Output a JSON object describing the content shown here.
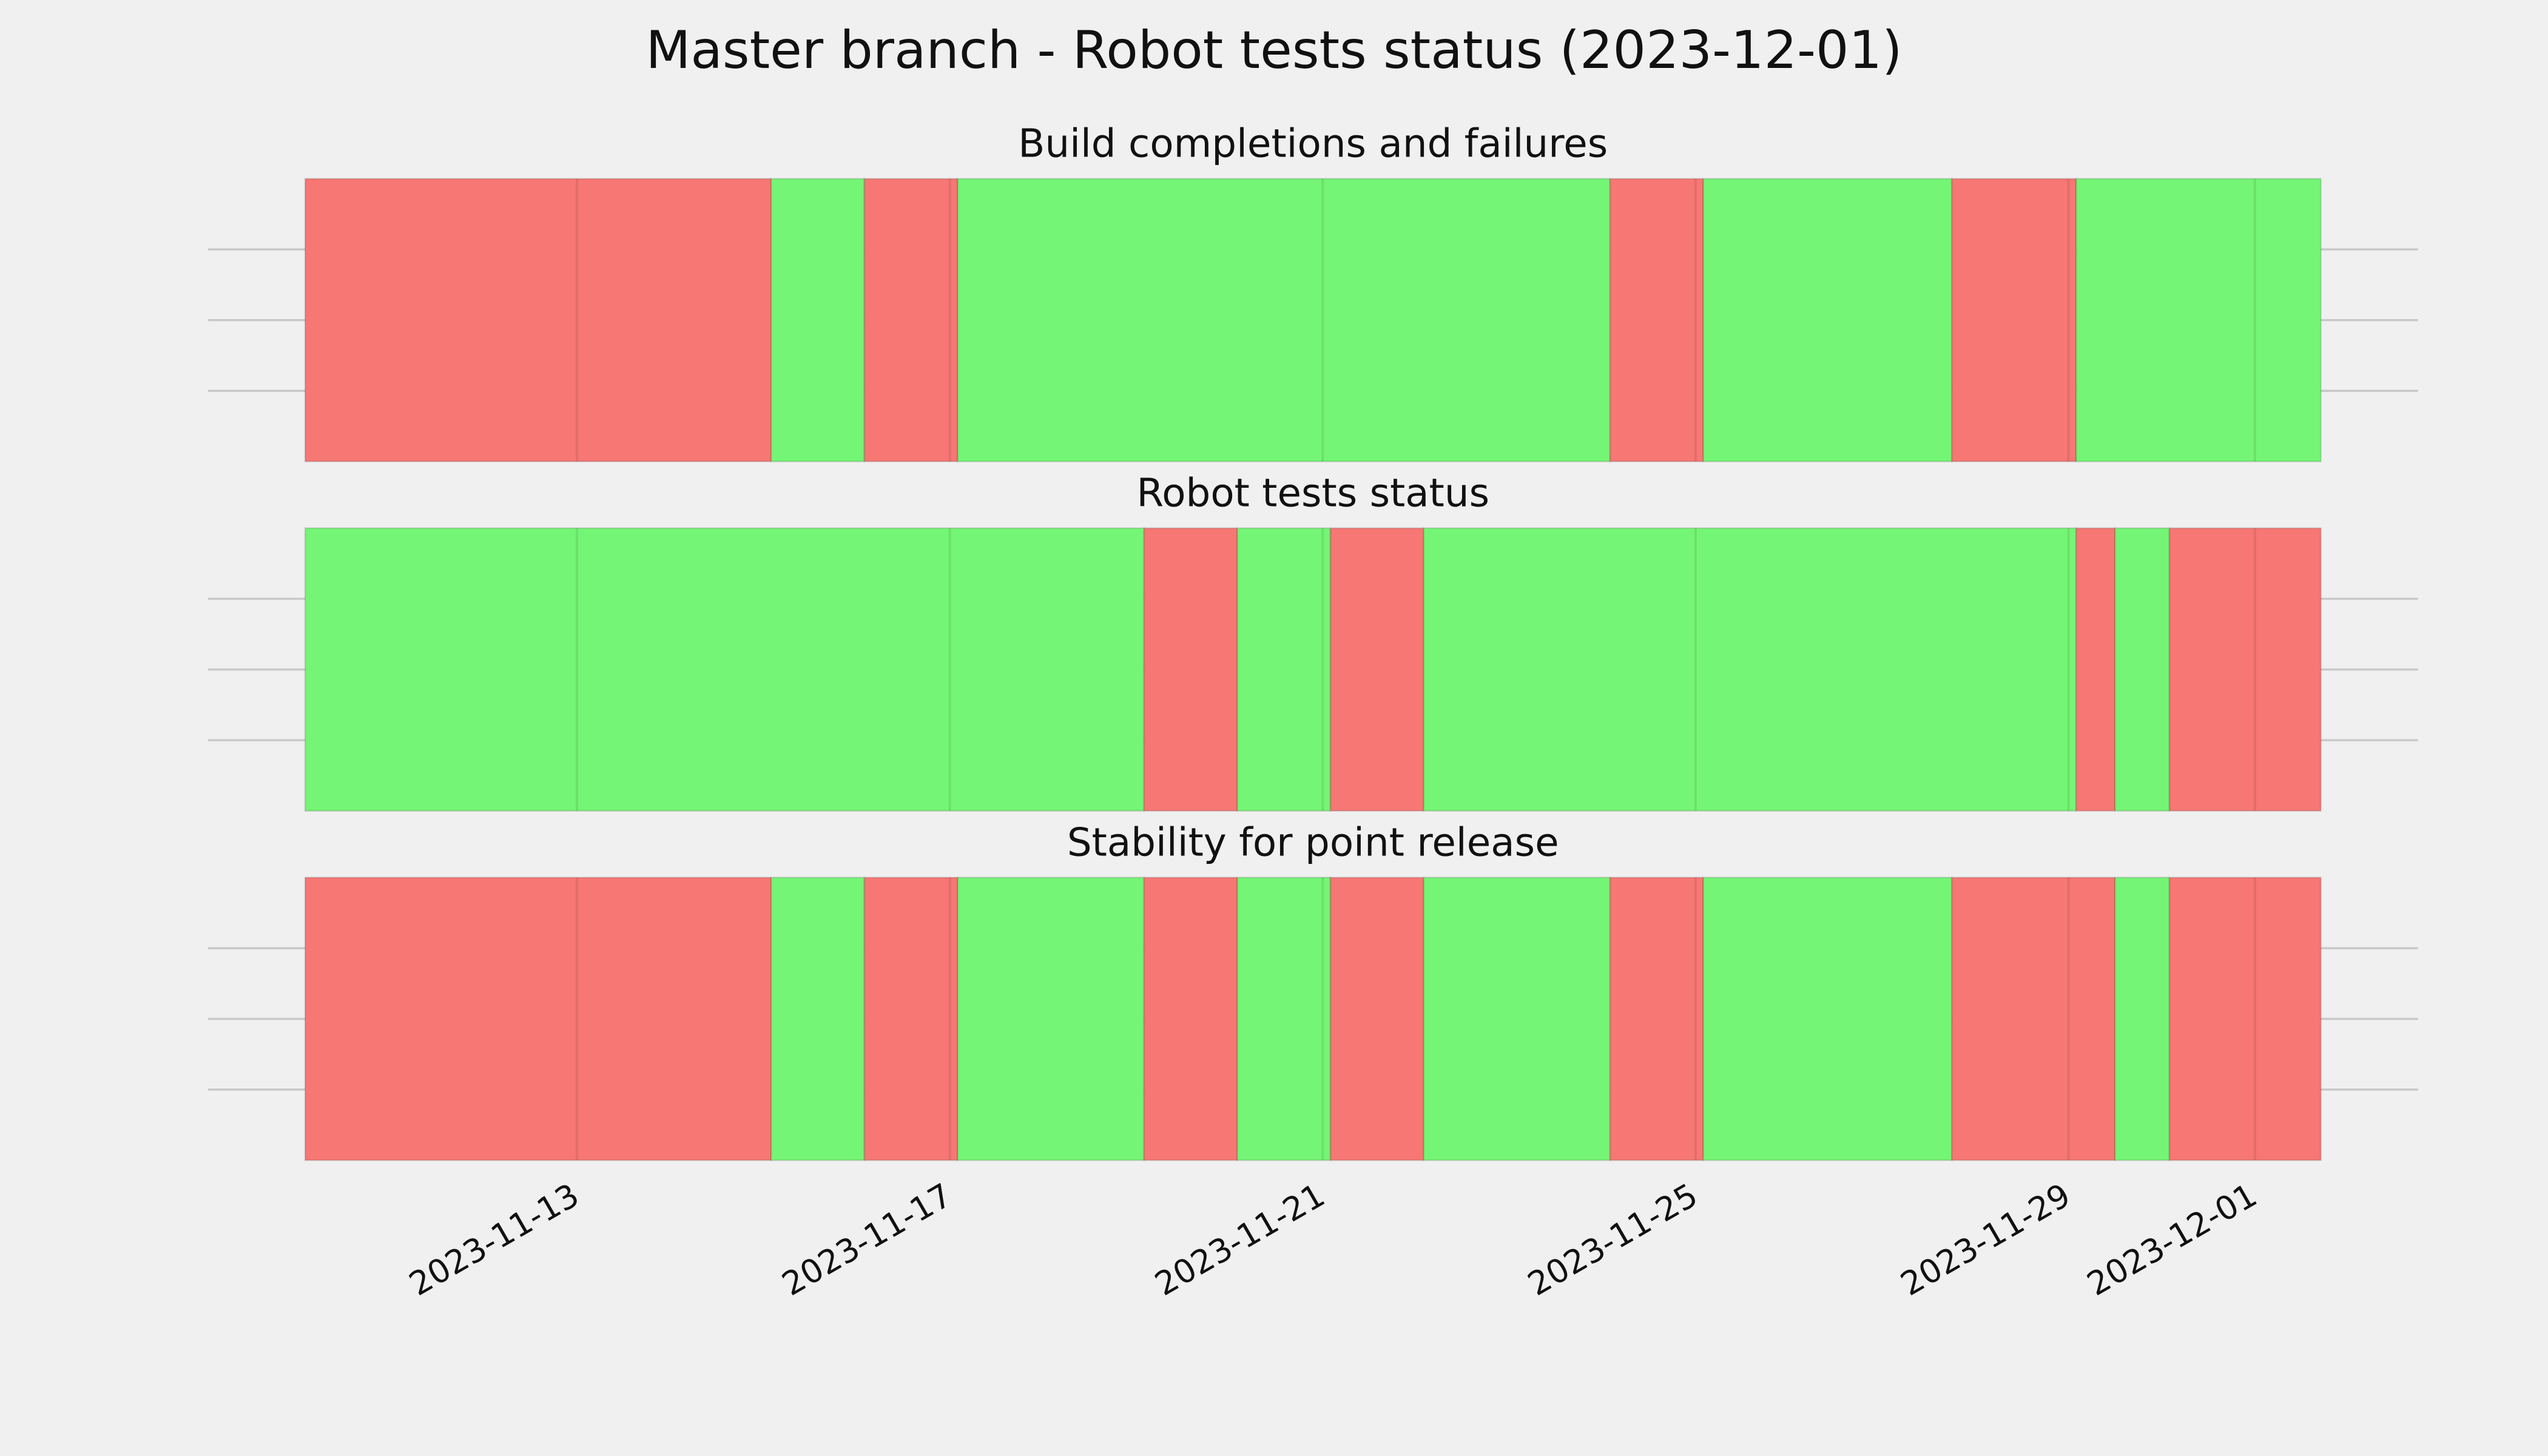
{
  "chart_data": {
    "type": "timeline",
    "title": "Master branch - Robot tests status (2023-12-01)",
    "xlim": [
      "2023-11-09 01:00",
      "2023-12-02 18:00"
    ],
    "xticks": [
      "2023-11-13",
      "2023-11-17",
      "2023-11-21",
      "2023-11-25",
      "2023-11-29",
      "2023-12-01"
    ],
    "grid": true,
    "panels": [
      {
        "title": "Build completions and failures",
        "spans": [
          {
            "start": "2023-11-10 02:00",
            "end": "2023-11-15 02:00",
            "color": "#f77774"
          },
          {
            "start": "2023-11-15 02:00",
            "end": "2023-11-16 02:00",
            "color": "#75f575"
          },
          {
            "start": "2023-11-16 02:00",
            "end": "2023-11-17 02:00",
            "color": "#f77774"
          },
          {
            "start": "2023-11-17 02:00",
            "end": "2023-11-24 02:00",
            "color": "#75f575"
          },
          {
            "start": "2023-11-24 02:00",
            "end": "2023-11-25 02:00",
            "color": "#f77774"
          },
          {
            "start": "2023-11-25 02:00",
            "end": "2023-11-27 18:00",
            "color": "#75f575"
          },
          {
            "start": "2023-11-27 18:00",
            "end": "2023-11-29 02:00",
            "color": "#f77774"
          },
          {
            "start": "2023-11-29 02:00",
            "end": "2023-12-01 17:00",
            "color": "#75f575"
          }
        ]
      },
      {
        "title": "Robot tests status",
        "spans": [
          {
            "start": "2023-11-10 02:00",
            "end": "2023-11-19 02:00",
            "color": "#75f575"
          },
          {
            "start": "2023-11-19 02:00",
            "end": "2023-11-20 02:00",
            "color": "#f77774"
          },
          {
            "start": "2023-11-20 02:00",
            "end": "2023-11-21 02:00",
            "color": "#75f575"
          },
          {
            "start": "2023-11-21 02:00",
            "end": "2023-11-22 02:00",
            "color": "#f77774"
          },
          {
            "start": "2023-11-22 02:00",
            "end": "2023-11-29 02:00",
            "color": "#75f575"
          },
          {
            "start": "2023-11-29 02:00",
            "end": "2023-11-29 12:00",
            "color": "#f77774"
          },
          {
            "start": "2023-11-29 12:00",
            "end": "2023-11-30 02:00",
            "color": "#75f575"
          },
          {
            "start": "2023-11-30 02:00",
            "end": "2023-12-01 17:00",
            "color": "#f77774"
          }
        ]
      },
      {
        "title": "Stability for point release",
        "spans": [
          {
            "start": "2023-11-10 02:00",
            "end": "2023-11-15 02:00",
            "color": "#f77774"
          },
          {
            "start": "2023-11-15 02:00",
            "end": "2023-11-16 02:00",
            "color": "#75f575"
          },
          {
            "start": "2023-11-16 02:00",
            "end": "2023-11-17 02:00",
            "color": "#f77774"
          },
          {
            "start": "2023-11-17 02:00",
            "end": "2023-11-19 02:00",
            "color": "#75f575"
          },
          {
            "start": "2023-11-19 02:00",
            "end": "2023-11-20 02:00",
            "color": "#f77774"
          },
          {
            "start": "2023-11-20 02:00",
            "end": "2023-11-21 02:00",
            "color": "#75f575"
          },
          {
            "start": "2023-11-21 02:00",
            "end": "2023-11-22 02:00",
            "color": "#f77774"
          },
          {
            "start": "2023-11-22 02:00",
            "end": "2023-11-24 02:00",
            "color": "#75f575"
          },
          {
            "start": "2023-11-24 02:00",
            "end": "2023-11-25 02:00",
            "color": "#f77774"
          },
          {
            "start": "2023-11-25 02:00",
            "end": "2023-11-27 18:00",
            "color": "#75f575"
          },
          {
            "start": "2023-11-27 18:00",
            "end": "2023-11-29 12:00",
            "color": "#f77774"
          },
          {
            "start": "2023-11-29 12:00",
            "end": "2023-11-30 02:00",
            "color": "#75f575"
          },
          {
            "start": "2023-11-30 02:00",
            "end": "2023-12-01 17:00",
            "color": "#f77774"
          }
        ]
      }
    ]
  }
}
